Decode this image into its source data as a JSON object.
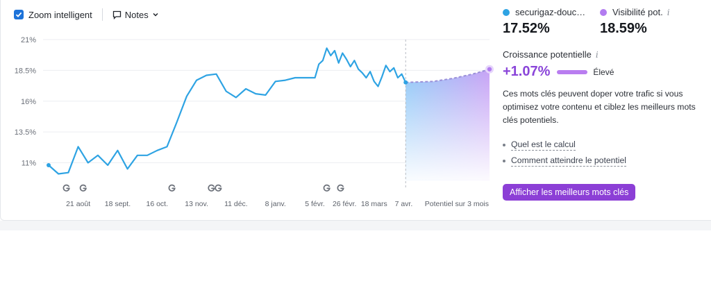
{
  "toolbar": {
    "zoom_label": "Zoom intelligent",
    "zoom_checked": true,
    "notes_label": "Notes"
  },
  "legend": {
    "domain_label": "securigaz-douc…",
    "domain_value": "17.52%",
    "domain_color": "#2ea3e3",
    "potential_label": "Visibilité pot.",
    "potential_value": "18.59%",
    "potential_color": "#b27cf0"
  },
  "growth": {
    "title": "Croissance potentielle",
    "value": "+1.07%",
    "level": "Élevé",
    "description": "Ces mots clés peuvent doper votre trafic si vous optimisez votre contenu et ciblez les meilleurs mots clés potentiels.",
    "links": [
      "Quel est le calcul",
      "Comment atteindre le potentiel"
    ],
    "cta_label": "Afficher les meilleurs mots clés"
  },
  "chart_data": {
    "type": "line",
    "y_ticks": [
      "21%",
      "18.5%",
      "16%",
      "13.5%",
      "11%"
    ],
    "y_tick_values": [
      21,
      18.5,
      16,
      13.5,
      11
    ],
    "ylim": [
      9,
      21
    ],
    "x_tick_labels": [
      "21 août",
      "18 sept.",
      "16 oct.",
      "13 nov.",
      "11 déc.",
      "8 janv.",
      "5 févr.",
      "26 févr.",
      "18 mars",
      "7 avr.",
      "Potentiel sur 3 mois"
    ],
    "x_tick_positions": [
      3,
      7,
      11,
      15,
      19,
      23,
      27,
      30,
      33,
      36,
      43
    ],
    "grid": true,
    "series": [
      {
        "color": "#2ea3e3",
        "points": [
          [
            0,
            10.8
          ],
          [
            1,
            10.1
          ],
          [
            2,
            10.2
          ],
          [
            3,
            12.3
          ],
          [
            4,
            11.0
          ],
          [
            5,
            11.6
          ],
          [
            6,
            10.8
          ],
          [
            7,
            12.0
          ],
          [
            8,
            10.5
          ],
          [
            9,
            11.6
          ],
          [
            10,
            11.6
          ],
          [
            11,
            12.0
          ],
          [
            12,
            12.3
          ],
          [
            13,
            14.3
          ],
          [
            14,
            16.4
          ],
          [
            15,
            17.7
          ],
          [
            16,
            18.1
          ],
          [
            17,
            18.2
          ],
          [
            18,
            16.8
          ],
          [
            19,
            16.3
          ],
          [
            20,
            17.0
          ],
          [
            21,
            16.6
          ],
          [
            22,
            16.5
          ],
          [
            23,
            17.6
          ],
          [
            24,
            17.7
          ],
          [
            25,
            17.9
          ],
          [
            26,
            17.9
          ],
          [
            27,
            17.9
          ],
          [
            27.4,
            19.0
          ],
          [
            27.8,
            19.3
          ],
          [
            28.2,
            20.3
          ],
          [
            28.6,
            19.7
          ],
          [
            29,
            20.1
          ],
          [
            29.4,
            19.1
          ],
          [
            29.8,
            19.9
          ],
          [
            30.2,
            19.4
          ],
          [
            30.6,
            18.8
          ],
          [
            31,
            19.3
          ],
          [
            31.4,
            18.6
          ],
          [
            31.8,
            18.3
          ],
          [
            32.2,
            17.9
          ],
          [
            32.6,
            18.4
          ],
          [
            33,
            17.6
          ],
          [
            33.4,
            17.2
          ],
          [
            33.8,
            18.0
          ],
          [
            34.2,
            18.9
          ],
          [
            34.6,
            18.4
          ],
          [
            35,
            18.7
          ],
          [
            35.4,
            17.9
          ],
          [
            35.8,
            18.2
          ],
          [
            36.2,
            17.5
          ]
        ]
      },
      {
        "color": "#b27cf0",
        "points": [
          [
            36.2,
            17.52
          ],
          [
            39,
            17.6
          ],
          [
            41,
            17.85
          ],
          [
            43,
            18.2
          ],
          [
            44.7,
            18.59
          ]
        ]
      }
    ],
    "google_update_markers": [
      1.8,
      3.5,
      12.5,
      16.5,
      17.2,
      28.2,
      29.6
    ],
    "forecast_start_x": 36.2
  }
}
